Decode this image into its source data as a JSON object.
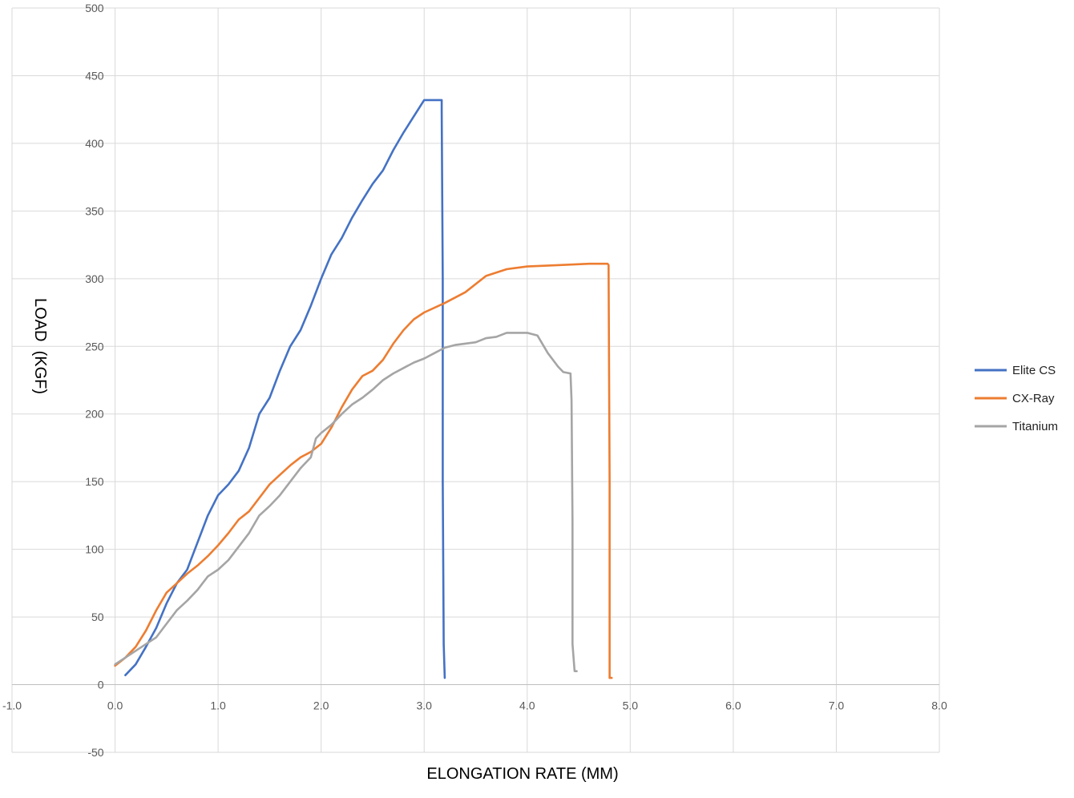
{
  "chart_data": {
    "type": "line",
    "title": "",
    "xlabel": "ELONGATION RATE (MM)",
    "ylabel": "LOAD  (KGF)",
    "xlim": [
      -1.0,
      8.0
    ],
    "ylim": [
      -50,
      500
    ],
    "x_ticks": [
      "-1.0",
      "0.0",
      "1.0",
      "2.0",
      "3.0",
      "4.0",
      "5.0",
      "6.0",
      "7.0",
      "8.0"
    ],
    "y_ticks": [
      "-50",
      "0",
      "50",
      "100",
      "150",
      "200",
      "250",
      "300",
      "350",
      "400",
      "450",
      "500"
    ],
    "grid": true,
    "legend_position": "right",
    "series": [
      {
        "name": "Elite CS",
        "color": "#4472C4",
        "points": [
          [
            0.1,
            7
          ],
          [
            0.2,
            15
          ],
          [
            0.3,
            28
          ],
          [
            0.4,
            42
          ],
          [
            0.5,
            60
          ],
          [
            0.6,
            75
          ],
          [
            0.7,
            85
          ],
          [
            0.8,
            105
          ],
          [
            0.9,
            125
          ],
          [
            1.0,
            140
          ],
          [
            1.1,
            148
          ],
          [
            1.2,
            158
          ],
          [
            1.3,
            175
          ],
          [
            1.4,
            200
          ],
          [
            1.5,
            212
          ],
          [
            1.6,
            232
          ],
          [
            1.7,
            250
          ],
          [
            1.8,
            262
          ],
          [
            1.9,
            280
          ],
          [
            2.0,
            300
          ],
          [
            2.1,
            318
          ],
          [
            2.2,
            330
          ],
          [
            2.3,
            345
          ],
          [
            2.4,
            358
          ],
          [
            2.5,
            370
          ],
          [
            2.6,
            380
          ],
          [
            2.7,
            395
          ],
          [
            2.8,
            408
          ],
          [
            2.9,
            420
          ],
          [
            3.0,
            432
          ],
          [
            3.17,
            432
          ],
          [
            3.17,
            424
          ],
          [
            3.18,
            300
          ],
          [
            3.18,
            150
          ],
          [
            3.19,
            30
          ],
          [
            3.2,
            5
          ]
        ]
      },
      {
        "name": "CX-Ray",
        "color": "#ED7D31",
        "points": [
          [
            0.0,
            14
          ],
          [
            0.1,
            20
          ],
          [
            0.2,
            28
          ],
          [
            0.3,
            40
          ],
          [
            0.4,
            55
          ],
          [
            0.5,
            68
          ],
          [
            0.6,
            75
          ],
          [
            0.7,
            82
          ],
          [
            0.8,
            88
          ],
          [
            0.9,
            95
          ],
          [
            1.0,
            103
          ],
          [
            1.1,
            112
          ],
          [
            1.2,
            122
          ],
          [
            1.3,
            128
          ],
          [
            1.4,
            138
          ],
          [
            1.5,
            148
          ],
          [
            1.6,
            155
          ],
          [
            1.7,
            162
          ],
          [
            1.8,
            168
          ],
          [
            1.9,
            172
          ],
          [
            2.0,
            178
          ],
          [
            2.1,
            190
          ],
          [
            2.2,
            205
          ],
          [
            2.3,
            218
          ],
          [
            2.4,
            228
          ],
          [
            2.5,
            232
          ],
          [
            2.6,
            240
          ],
          [
            2.7,
            252
          ],
          [
            2.8,
            262
          ],
          [
            2.9,
            270
          ],
          [
            3.0,
            275
          ],
          [
            3.2,
            282
          ],
          [
            3.4,
            290
          ],
          [
            3.6,
            302
          ],
          [
            3.8,
            307
          ],
          [
            4.0,
            309
          ],
          [
            4.3,
            310
          ],
          [
            4.6,
            311
          ],
          [
            4.78,
            311
          ],
          [
            4.79,
            310
          ],
          [
            4.8,
            150
          ],
          [
            4.8,
            5
          ],
          [
            4.82,
            5
          ]
        ]
      },
      {
        "name": "Titanium",
        "color": "#A5A5A5",
        "points": [
          [
            0.0,
            15
          ],
          [
            0.2,
            25
          ],
          [
            0.4,
            35
          ],
          [
            0.5,
            45
          ],
          [
            0.6,
            55
          ],
          [
            0.7,
            62
          ],
          [
            0.8,
            70
          ],
          [
            0.9,
            80
          ],
          [
            1.0,
            85
          ],
          [
            1.1,
            92
          ],
          [
            1.2,
            102
          ],
          [
            1.3,
            112
          ],
          [
            1.4,
            125
          ],
          [
            1.5,
            132
          ],
          [
            1.6,
            140
          ],
          [
            1.7,
            150
          ],
          [
            1.8,
            160
          ],
          [
            1.9,
            168
          ],
          [
            1.95,
            182
          ],
          [
            2.0,
            186
          ],
          [
            2.1,
            192
          ],
          [
            2.2,
            200
          ],
          [
            2.3,
            207
          ],
          [
            2.4,
            212
          ],
          [
            2.5,
            218
          ],
          [
            2.6,
            225
          ],
          [
            2.7,
            230
          ],
          [
            2.8,
            234
          ],
          [
            2.9,
            238
          ],
          [
            3.0,
            241
          ],
          [
            3.1,
            245
          ],
          [
            3.2,
            249
          ],
          [
            3.3,
            251
          ],
          [
            3.5,
            253
          ],
          [
            3.6,
            256
          ],
          [
            3.7,
            257
          ],
          [
            3.8,
            260
          ],
          [
            4.0,
            260
          ],
          [
            4.1,
            258
          ],
          [
            4.2,
            245
          ],
          [
            4.3,
            235
          ],
          [
            4.35,
            231
          ],
          [
            4.42,
            230
          ],
          [
            4.43,
            210
          ],
          [
            4.44,
            120
          ],
          [
            4.44,
            30
          ],
          [
            4.46,
            10
          ],
          [
            4.48,
            10
          ]
        ]
      }
    ]
  }
}
